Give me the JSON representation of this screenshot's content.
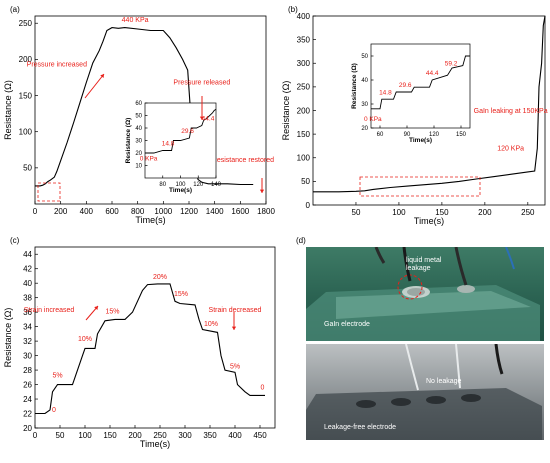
{
  "chart_data": [
    {
      "panel": "(a)",
      "type": "line",
      "xlabel": "Time(s)",
      "ylabel": "Resistance (Ω)",
      "xlim": [
        0,
        1800
      ],
      "ylim": [
        0,
        260
      ],
      "xticks": [
        0,
        200,
        400,
        600,
        800,
        1000,
        1200,
        1400,
        1600,
        1800
      ],
      "yticks": [
        50,
        100,
        150,
        200,
        250
      ],
      "series": [
        {
          "x": [
            0,
            40,
            60,
            80,
            100,
            120,
            150,
            170,
            200,
            250,
            300,
            350,
            400,
            450,
            500,
            530,
            560,
            600,
            650,
            700,
            800,
            900,
            1000,
            1050,
            1100,
            1150,
            1190,
            1215,
            1240,
            1270,
            1300,
            1350,
            1500,
            1600,
            1700
          ],
          "y": [
            25,
            25,
            26,
            28,
            31,
            33,
            37,
            45,
            60,
            85,
            112,
            140,
            168,
            195,
            212,
            225,
            240,
            244,
            243,
            244,
            242,
            240,
            240,
            230,
            216,
            200,
            185,
            120,
            65,
            34,
            30,
            28,
            28,
            27,
            27
          ]
        }
      ],
      "annotations": [
        {
          "text": "440 KPa",
          "x": 780,
          "y": 252
        },
        {
          "text": "Pressure increased",
          "x": 170,
          "y": 190
        },
        {
          "text": "Pressure released",
          "x": 1300,
          "y": 165
        },
        {
          "text": "Resistance restored",
          "x": 1620,
          "y": 58
        }
      ],
      "inset": {
        "xlabel": "Time(s)",
        "ylabel": "Resistance (Ω)",
        "xlim": [
          60,
          140
        ],
        "ylim": [
          0,
          60
        ],
        "xticks": [
          80,
          100,
          120,
          140
        ],
        "yticks": [
          10,
          20,
          30,
          40,
          50,
          60
        ],
        "x": [
          60,
          70,
          80,
          90,
          92,
          100,
          110,
          112,
          118,
          124,
          126,
          130,
          136,
          138,
          140
        ],
        "y": [
          20,
          20,
          22,
          22,
          30,
          30,
          32,
          40,
          40,
          42,
          46,
          48,
          52,
          54,
          55
        ],
        "annotations": [
          {
            "text": "0 KPa",
            "x": 64,
            "y": 14
          },
          {
            "text": "14.8",
            "x": 86,
            "y": 26
          },
          {
            "text": "29.6",
            "x": 108,
            "y": 36
          },
          {
            "text": "44.4",
            "x": 131,
            "y": 46
          }
        ]
      }
    },
    {
      "panel": "(b)",
      "type": "line",
      "xlabel": "Time(s)",
      "ylabel": "Resistance (Ω)",
      "xlim": [
        0,
        270
      ],
      "ylim": [
        0,
        400
      ],
      "xticks": [
        50,
        100,
        150,
        200,
        250
      ],
      "yticks": [
        0,
        50,
        100,
        150,
        200,
        250,
        300,
        350,
        400
      ],
      "series": [
        {
          "x": [
            0,
            30,
            50,
            60,
            70,
            90,
            110,
            130,
            150,
            170,
            190,
            210,
            230,
            250,
            258,
            261,
            263,
            266,
            268,
            270
          ],
          "y": [
            28,
            28,
            29,
            30,
            33,
            37,
            40,
            43,
            46,
            50,
            55,
            60,
            65,
            70,
            72,
            120,
            250,
            300,
            380,
            400
          ]
        }
      ],
      "annotations": [
        {
          "text": "120 KPa",
          "x": 230,
          "y": 115
        },
        {
          "text": "GaIn leaking at 150KPa",
          "x": 230,
          "y": 195
        }
      ],
      "inset": {
        "xlabel": "Time(s)",
        "ylabel": "Resistance (Ω)",
        "xlim": [
          50,
          160
        ],
        "ylim": [
          20,
          55
        ],
        "xticks": [
          60,
          90,
          120,
          150
        ],
        "yticks": [
          20,
          30,
          40,
          50
        ],
        "x": [
          50,
          60,
          62,
          75,
          78,
          95,
          98,
          115,
          118,
          135,
          140,
          152,
          155,
          160
        ],
        "y": [
          28,
          28,
          32,
          32,
          35,
          35,
          37,
          37,
          40,
          42,
          45,
          46,
          50,
          50
        ],
        "annotations": [
          {
            "text": "0 KPa",
            "x": 52,
            "y": 23
          },
          {
            "text": "14.8",
            "x": 66,
            "y": 34
          },
          {
            "text": "29.6",
            "x": 88,
            "y": 37
          },
          {
            "text": "44.4",
            "x": 118,
            "y": 42
          },
          {
            "text": "59.2",
            "x": 139,
            "y": 46
          }
        ]
      }
    },
    {
      "panel": "(c)",
      "type": "line",
      "xlabel": "Time(s)",
      "ylabel": "Resistance (Ω)",
      "xlim": [
        0,
        480
      ],
      "ylim": [
        20,
        45
      ],
      "xticks": [
        0,
        50,
        100,
        150,
        200,
        250,
        300,
        350,
        400,
        450
      ],
      "yticks": [
        20,
        22,
        24,
        26,
        28,
        30,
        32,
        34,
        36,
        38,
        40,
        42,
        44
      ],
      "series": [
        {
          "x": [
            0,
            20,
            30,
            35,
            45,
            60,
            75,
            85,
            95,
            100,
            120,
            125,
            140,
            160,
            180,
            195,
            215,
            225,
            245,
            270,
            280,
            290,
            320,
            328,
            335,
            365,
            372,
            380,
            400,
            405,
            420,
            430,
            460
          ],
          "y": [
            22,
            22,
            22.5,
            25,
            26,
            26,
            26,
            28,
            30,
            31,
            31,
            33,
            34.8,
            35,
            35,
            36,
            39,
            39.8,
            39.9,
            39.9,
            37.5,
            37.2,
            37,
            35,
            33.6,
            33.2,
            30,
            28,
            27.7,
            26,
            25,
            24.5,
            24.5
          ]
        }
      ],
      "annotations": [
        {
          "text": "0",
          "x": 38,
          "y": 22.2
        },
        {
          "text": "5%",
          "x": 45,
          "y": 27
        },
        {
          "text": "10%",
          "x": 100,
          "y": 32
        },
        {
          "text": "15%",
          "x": 155,
          "y": 35.8
        },
        {
          "text": "20%",
          "x": 250,
          "y": 40.6
        },
        {
          "text": "15%",
          "x": 292,
          "y": 38.2
        },
        {
          "text": "10%",
          "x": 352,
          "y": 34.1
        },
        {
          "text": "5%",
          "x": 400,
          "y": 28.2
        },
        {
          "text": "0",
          "x": 455,
          "y": 25.3
        },
        {
          "text": "Strain increased",
          "x": 28,
          "y": 36
        },
        {
          "text": "Strain decreased",
          "x": 400,
          "y": 36
        }
      ]
    }
  ],
  "panel_d": {
    "label": "(d)",
    "top_labels": [
      "liquid metal leakage",
      "GaIn electrode"
    ],
    "bottom_labels": [
      "No leakage",
      "Leakage-free electrode"
    ]
  },
  "colors": {
    "line": "#000000",
    "annotation": "#e8201a",
    "inset_box": "#e8201a"
  }
}
